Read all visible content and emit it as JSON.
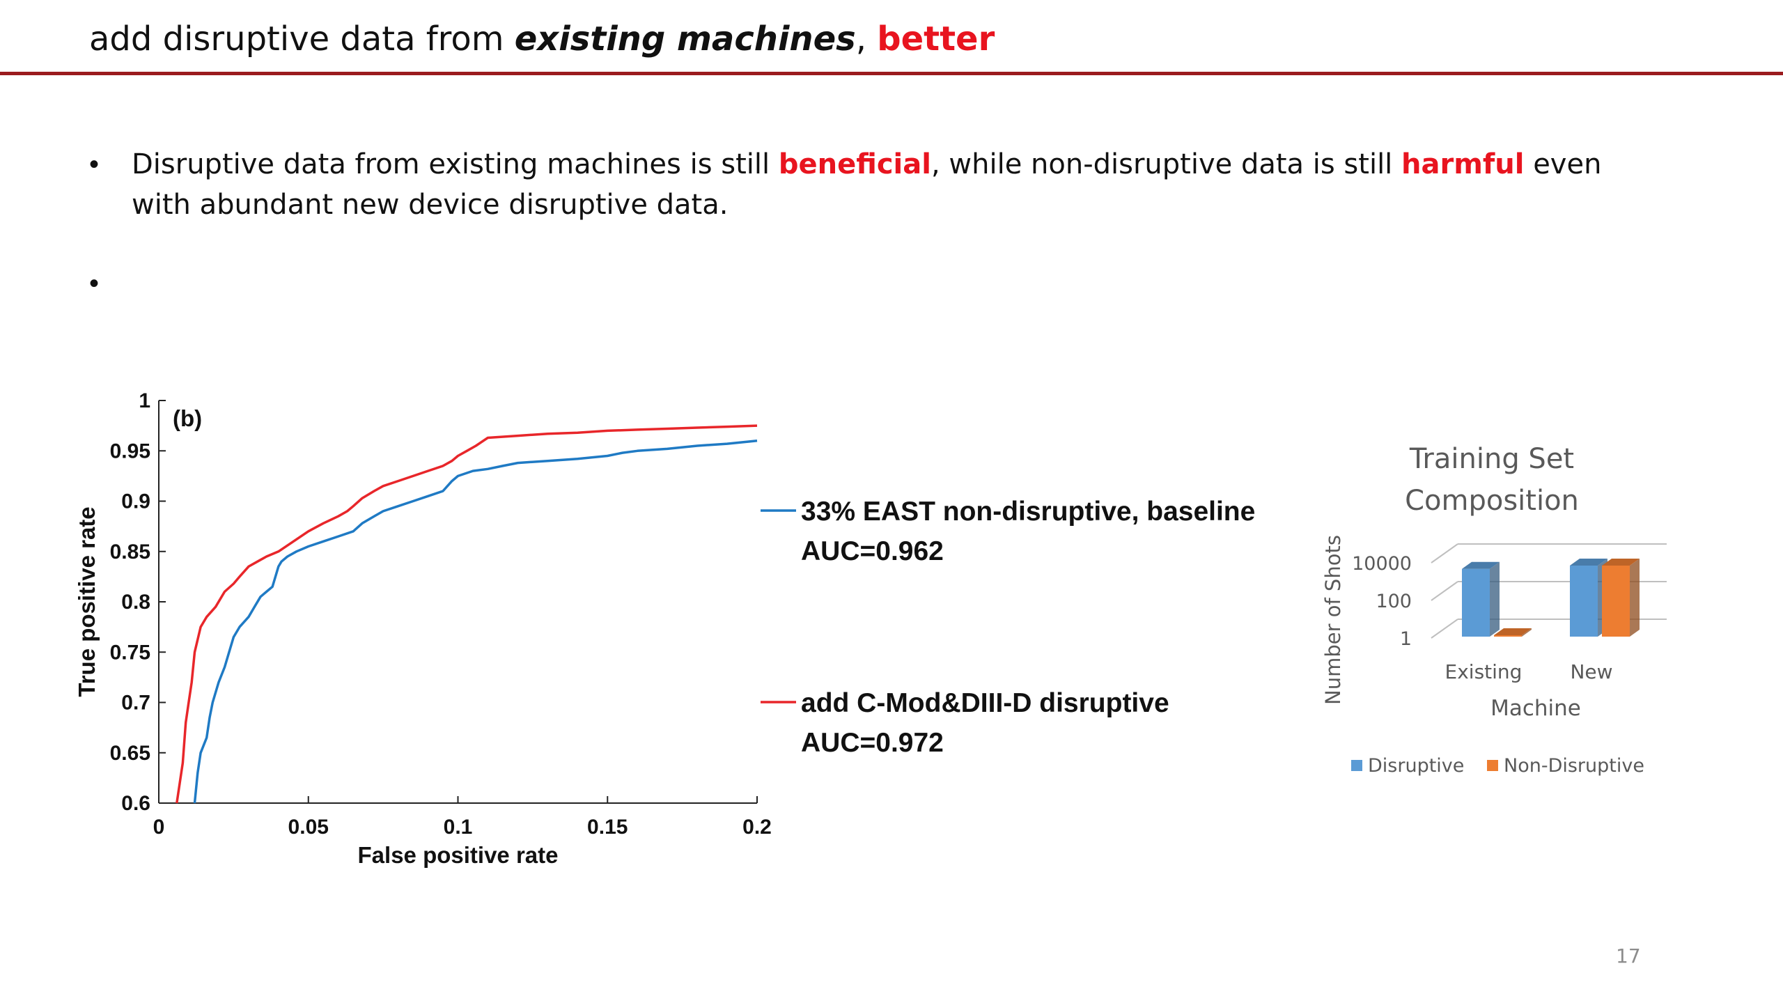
{
  "slide": {
    "title": {
      "prefix": "add disruptive data from ",
      "emphasis": "existing machines",
      "comma": ", ",
      "highlight": "better"
    },
    "bullets": [
      {
        "parts": [
          "Disruptive data from existing machines is still ",
          "beneficial",
          ", while non-disruptive data is still ",
          "harmful",
          " even with abundant new device disruptive data."
        ]
      },
      {
        "parts": [
          ""
        ]
      }
    ],
    "bullet_symbol": "•",
    "page_number": "17",
    "accent_color": "#9b1b1f",
    "highlight_color": "#e8141f"
  },
  "chart_data": [
    {
      "type": "line",
      "panel_label": "(b)",
      "xlabel": "False positive rate",
      "ylabel": "True positive rate",
      "xlim": [
        0,
        0.2
      ],
      "ylim": [
        0.6,
        1
      ],
      "xticks": [
        "0",
        "0.05",
        "0.1",
        "0.15",
        "0.2"
      ],
      "yticks": [
        "0.6",
        "0.65",
        "0.7",
        "0.75",
        "0.8",
        "0.85",
        "0.9",
        "0.95",
        "1"
      ],
      "grid": false,
      "legend_position": "right",
      "series": [
        {
          "name": "33% EAST non-disruptive, baseline",
          "auc_label": "AUC=0.962",
          "color": "#1f7ac4",
          "x": [
            0.012,
            0.013,
            0.014,
            0.016,
            0.017,
            0.018,
            0.02,
            0.022,
            0.024,
            0.025,
            0.027,
            0.03,
            0.032,
            0.034,
            0.036,
            0.038,
            0.04,
            0.041,
            0.043,
            0.046,
            0.05,
            0.055,
            0.06,
            0.065,
            0.068,
            0.072,
            0.075,
            0.08,
            0.085,
            0.09,
            0.095,
            0.098,
            0.1,
            0.105,
            0.11,
            0.115,
            0.12,
            0.13,
            0.14,
            0.15,
            0.155,
            0.16,
            0.17,
            0.18,
            0.19,
            0.2
          ],
          "y": [
            0.6,
            0.63,
            0.65,
            0.665,
            0.685,
            0.7,
            0.72,
            0.735,
            0.755,
            0.765,
            0.775,
            0.785,
            0.795,
            0.805,
            0.81,
            0.815,
            0.835,
            0.84,
            0.845,
            0.85,
            0.855,
            0.86,
            0.865,
            0.87,
            0.878,
            0.885,
            0.89,
            0.895,
            0.9,
            0.905,
            0.91,
            0.92,
            0.925,
            0.93,
            0.932,
            0.935,
            0.938,
            0.94,
            0.942,
            0.945,
            0.948,
            0.95,
            0.952,
            0.955,
            0.957,
            0.96
          ]
        },
        {
          "name": "add C-Mod&DIII-D disruptive",
          "auc_label": "AUC=0.972",
          "color": "#e8262a",
          "x": [
            0.006,
            0.007,
            0.008,
            0.009,
            0.01,
            0.011,
            0.012,
            0.014,
            0.016,
            0.019,
            0.022,
            0.025,
            0.027,
            0.03,
            0.033,
            0.036,
            0.04,
            0.045,
            0.05,
            0.055,
            0.06,
            0.063,
            0.065,
            0.068,
            0.072,
            0.075,
            0.08,
            0.085,
            0.09,
            0.095,
            0.098,
            0.1,
            0.103,
            0.106,
            0.11,
            0.12,
            0.13,
            0.14,
            0.15,
            0.16,
            0.17,
            0.18,
            0.19,
            0.2
          ],
          "y": [
            0.6,
            0.62,
            0.64,
            0.68,
            0.7,
            0.72,
            0.75,
            0.775,
            0.785,
            0.795,
            0.81,
            0.818,
            0.825,
            0.835,
            0.84,
            0.845,
            0.85,
            0.86,
            0.87,
            0.878,
            0.885,
            0.89,
            0.895,
            0.903,
            0.91,
            0.915,
            0.92,
            0.925,
            0.93,
            0.935,
            0.94,
            0.945,
            0.95,
            0.955,
            0.963,
            0.965,
            0.967,
            0.968,
            0.97,
            0.971,
            0.972,
            0.973,
            0.974,
            0.975
          ]
        }
      ]
    },
    {
      "type": "bar",
      "title": "Training Set Composition",
      "xlabel": "Machine",
      "ylabel": "Number of Shots",
      "y_scale": "log",
      "yticks": [
        "1",
        "100",
        "10000"
      ],
      "categories": [
        "Existing",
        "New"
      ],
      "legend_position": "bottom",
      "series": [
        {
          "name": "Disruptive",
          "color": "#5b9bd5",
          "values": [
            4000,
            6000
          ]
        },
        {
          "name": "Non-Disruptive",
          "color": "#ed7d31",
          "values": [
            1,
            6000
          ]
        }
      ]
    }
  ]
}
